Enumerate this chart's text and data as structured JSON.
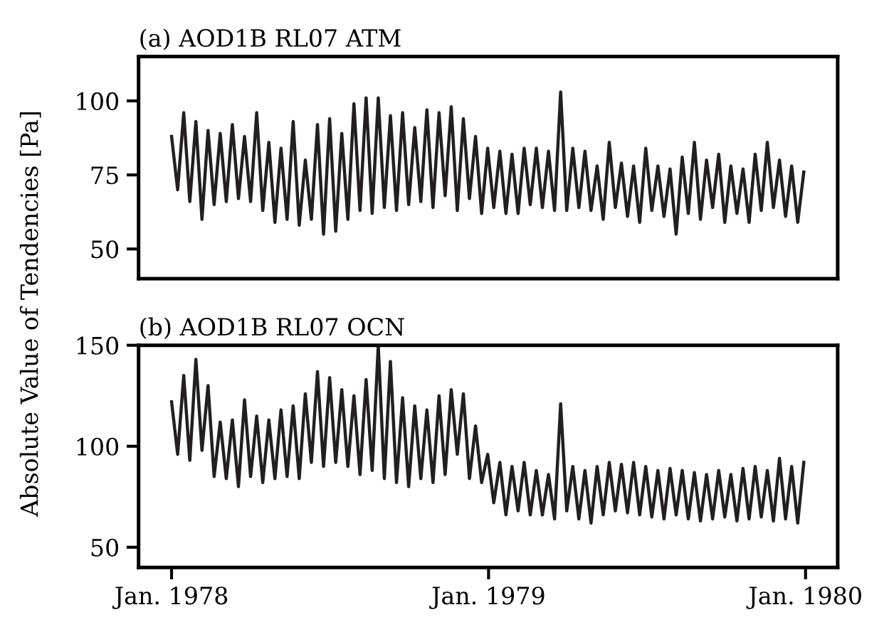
{
  "chart_data": [
    {
      "type": "line",
      "title": "(a) AOD1B RL07 ATM",
      "ylabel": "Absolute Value of Tendencies [Pa]",
      "xlim": [
        "1977-11-24",
        "1980-02-07"
      ],
      "ylim": [
        40,
        115
      ],
      "yticks": [
        50,
        75,
        100
      ],
      "tick_labels": "y",
      "grid": false,
      "legend": false,
      "x": [
        "1978-01-01",
        "1978-01-08",
        "1978-01-15",
        "1978-01-22",
        "1978-01-29",
        "1978-02-05",
        "1978-02-12",
        "1978-02-19",
        "1978-02-26",
        "1978-03-05",
        "1978-03-12",
        "1978-03-19",
        "1978-03-26",
        "1978-04-02",
        "1978-04-09",
        "1978-04-16",
        "1978-04-23",
        "1978-04-30",
        "1978-05-07",
        "1978-05-14",
        "1978-05-21",
        "1978-05-28",
        "1978-06-04",
        "1978-06-11",
        "1978-06-18",
        "1978-06-25",
        "1978-07-02",
        "1978-07-09",
        "1978-07-16",
        "1978-07-23",
        "1978-07-30",
        "1978-08-06",
        "1978-08-13",
        "1978-08-20",
        "1978-08-27",
        "1978-09-03",
        "1978-09-10",
        "1978-09-17",
        "1978-09-24",
        "1978-10-01",
        "1978-10-08",
        "1978-10-15",
        "1978-10-22",
        "1978-10-29",
        "1978-11-05",
        "1978-11-12",
        "1978-11-19",
        "1978-11-26",
        "1978-12-03",
        "1978-12-10",
        "1978-12-17",
        "1978-12-24",
        "1978-12-31",
        "1979-01-07",
        "1979-01-14",
        "1979-01-21",
        "1979-01-28",
        "1979-02-04",
        "1979-02-11",
        "1979-02-18",
        "1979-02-25",
        "1979-03-04",
        "1979-03-11",
        "1979-03-18",
        "1979-03-25",
        "1979-04-01",
        "1979-04-08",
        "1979-04-15",
        "1979-04-22",
        "1979-04-29",
        "1979-05-06",
        "1979-05-13",
        "1979-05-20",
        "1979-05-27",
        "1979-06-03",
        "1979-06-10",
        "1979-06-17",
        "1979-06-24",
        "1979-07-01",
        "1979-07-08",
        "1979-07-15",
        "1979-07-22",
        "1979-07-29",
        "1979-08-05",
        "1979-08-12",
        "1979-08-19",
        "1979-08-26",
        "1979-09-02",
        "1979-09-09",
        "1979-09-16",
        "1979-09-23",
        "1979-09-30",
        "1979-10-07",
        "1979-10-14",
        "1979-10-21",
        "1979-10-28",
        "1979-11-04",
        "1979-11-11",
        "1979-11-18",
        "1979-11-25",
        "1979-12-02",
        "1979-12-09",
        "1979-12-16",
        "1979-12-23",
        "1979-12-30"
      ],
      "series": [
        {
          "color": "#231f20",
          "values": [
            88,
            70,
            96,
            66,
            93,
            60,
            90,
            65,
            89,
            66,
            92,
            67,
            88,
            66,
            96,
            63,
            86,
            59,
            84,
            60,
            93,
            58,
            80,
            60,
            92,
            55,
            94,
            56,
            89,
            60,
            99,
            63,
            101,
            62,
            101,
            64,
            95,
            63,
            96,
            65,
            91,
            66,
            97,
            64,
            96,
            68,
            98,
            63,
            94,
            67,
            88,
            62,
            84,
            64,
            83,
            62,
            82,
            62,
            84,
            65,
            84,
            64,
            83,
            63,
            103,
            63,
            84,
            64,
            83,
            63,
            78,
            60,
            86,
            64,
            79,
            61,
            78,
            59,
            84,
            63,
            78,
            61,
            77,
            55,
            81,
            62,
            86,
            60,
            80,
            64,
            82,
            59,
            78,
            62,
            77,
            59,
            82,
            63,
            86,
            64,
            80,
            61,
            78,
            59,
            76
          ]
        }
      ]
    },
    {
      "type": "line",
      "title": "(b) AOD1B RL07 OCN",
      "xlim": [
        "1977-11-24",
        "1980-02-07"
      ],
      "ylim": [
        40,
        150
      ],
      "yticks": [
        50,
        100,
        150
      ],
      "grid": false,
      "legend": false,
      "xticks": [
        {
          "value": "1978-01-01",
          "label": "Jan. 1978"
        },
        {
          "value": "1979-01-01",
          "label": "Jan. 1979"
        },
        {
          "value": "1980-01-01",
          "label": "Jan. 1980"
        }
      ],
      "x": [
        "1978-01-01",
        "1978-01-08",
        "1978-01-15",
        "1978-01-22",
        "1978-01-29",
        "1978-02-05",
        "1978-02-12",
        "1978-02-19",
        "1978-02-26",
        "1978-03-05",
        "1978-03-12",
        "1978-03-19",
        "1978-03-26",
        "1978-04-02",
        "1978-04-09",
        "1978-04-16",
        "1978-04-23",
        "1978-04-30",
        "1978-05-07",
        "1978-05-14",
        "1978-05-21",
        "1978-05-28",
        "1978-06-04",
        "1978-06-11",
        "1978-06-18",
        "1978-06-25",
        "1978-07-02",
        "1978-07-09",
        "1978-07-16",
        "1978-07-23",
        "1978-07-30",
        "1978-08-06",
        "1978-08-13",
        "1978-08-20",
        "1978-08-27",
        "1978-09-03",
        "1978-09-10",
        "1978-09-17",
        "1978-09-24",
        "1978-10-01",
        "1978-10-08",
        "1978-10-15",
        "1978-10-22",
        "1978-10-29",
        "1978-11-05",
        "1978-11-12",
        "1978-11-19",
        "1978-11-26",
        "1978-12-03",
        "1978-12-10",
        "1978-12-17",
        "1978-12-24",
        "1978-12-31",
        "1979-01-07",
        "1979-01-14",
        "1979-01-21",
        "1979-01-28",
        "1979-02-04",
        "1979-02-11",
        "1979-02-18",
        "1979-02-25",
        "1979-03-04",
        "1979-03-11",
        "1979-03-18",
        "1979-03-25",
        "1979-04-01",
        "1979-04-08",
        "1979-04-15",
        "1979-04-22",
        "1979-04-29",
        "1979-05-06",
        "1979-05-13",
        "1979-05-20",
        "1979-05-27",
        "1979-06-03",
        "1979-06-10",
        "1979-06-17",
        "1979-06-24",
        "1979-07-01",
        "1979-07-08",
        "1979-07-15",
        "1979-07-22",
        "1979-07-29",
        "1979-08-05",
        "1979-08-12",
        "1979-08-19",
        "1979-08-26",
        "1979-09-02",
        "1979-09-09",
        "1979-09-16",
        "1979-09-23",
        "1979-09-30",
        "1979-10-07",
        "1979-10-14",
        "1979-10-21",
        "1979-10-28",
        "1979-11-04",
        "1979-11-11",
        "1979-11-18",
        "1979-11-25",
        "1979-12-02",
        "1979-12-09",
        "1979-12-16",
        "1979-12-23",
        "1979-12-30"
      ],
      "series": [
        {
          "color": "#231f20",
          "values": [
            122,
            96,
            135,
            93,
            143,
            98,
            130,
            85,
            112,
            84,
            113,
            80,
            123,
            85,
            115,
            82,
            113,
            84,
            118,
            85,
            120,
            84,
            126,
            92,
            137,
            90,
            134,
            92,
            128,
            90,
            125,
            86,
            133,
            88,
            150,
            84,
            142,
            82,
            124,
            80,
            120,
            84,
            118,
            82,
            125,
            86,
            128,
            96,
            126,
            84,
            110,
            82,
            96,
            72,
            92,
            66,
            90,
            68,
            92,
            66,
            88,
            66,
            86,
            64,
            121,
            68,
            90,
            64,
            88,
            62,
            90,
            66,
            92,
            68,
            91,
            67,
            92,
            66,
            90,
            65,
            88,
            64,
            89,
            66,
            88,
            64,
            87,
            63,
            86,
            64,
            88,
            65,
            86,
            63,
            89,
            64,
            90,
            65,
            88,
            63,
            94,
            64,
            90,
            62,
            92
          ]
        }
      ]
    }
  ]
}
